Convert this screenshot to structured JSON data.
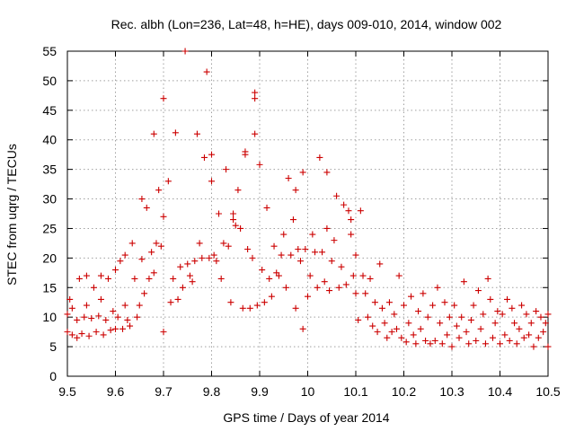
{
  "chart_data": {
    "type": "scatter",
    "title": "Rec. albh (Lon=236, Lat=48, h=HE), days 009-010, 2014, window 002",
    "xlabel": "GPS time / Days of year 2014",
    "ylabel": "STEC from uqrg / TECUs",
    "xlim": [
      9.5,
      10.5
    ],
    "ylim": [
      0,
      55
    ],
    "xticks": [
      9.5,
      9.6,
      9.7,
      9.8,
      9.9,
      10,
      10.1,
      10.2,
      10.3,
      10.4,
      10.5
    ],
    "xtick_labels": [
      "9.5",
      "9.6",
      "9.7",
      "9.8",
      "9.9",
      "10",
      "10.1",
      "10.2",
      "10.3",
      "10.4",
      "10.5"
    ],
    "yticks": [
      0,
      5,
      10,
      15,
      20,
      25,
      30,
      35,
      40,
      45,
      50,
      55
    ],
    "ytick_labels": [
      "0",
      "5",
      "10",
      "15",
      "20",
      "25",
      "30",
      "35",
      "40",
      "45",
      "50",
      "55"
    ],
    "grid": true,
    "legend": "none",
    "marker": "+",
    "color": "#cc0000",
    "series": [
      {
        "points": [
          [
            9.5,
            7.5
          ],
          [
            9.5,
            10.5
          ],
          [
            9.505,
            13.0
          ],
          [
            9.51,
            7.0
          ],
          [
            9.51,
            11.5
          ],
          [
            9.52,
            6.5
          ],
          [
            9.52,
            9.5
          ],
          [
            9.525,
            16.5
          ],
          [
            9.53,
            7.2
          ],
          [
            9.535,
            10.0
          ],
          [
            9.54,
            17.0
          ],
          [
            9.54,
            12.0
          ],
          [
            9.545,
            6.8
          ],
          [
            9.55,
            9.8
          ],
          [
            9.555,
            15.0
          ],
          [
            9.56,
            7.5
          ],
          [
            9.565,
            10.2
          ],
          [
            9.57,
            17.0
          ],
          [
            9.57,
            13.0
          ],
          [
            9.575,
            7.0
          ],
          [
            9.58,
            9.5
          ],
          [
            9.585,
            16.5
          ],
          [
            9.59,
            7.8
          ],
          [
            9.595,
            11.0
          ],
          [
            9.6,
            18.0
          ],
          [
            9.6,
            8.0
          ],
          [
            9.605,
            10.0
          ],
          [
            9.61,
            19.5
          ],
          [
            9.615,
            8.0
          ],
          [
            9.62,
            12.0
          ],
          [
            9.62,
            20.5
          ],
          [
            9.625,
            9.5
          ],
          [
            9.63,
            8.5
          ],
          [
            9.635,
            22.5
          ],
          [
            9.64,
            16.5
          ],
          [
            9.645,
            10.0
          ],
          [
            9.65,
            12.0
          ],
          [
            9.655,
            19.8
          ],
          [
            9.655,
            30.0
          ],
          [
            9.66,
            14.0
          ],
          [
            9.665,
            28.5
          ],
          [
            9.67,
            16.5
          ],
          [
            9.675,
            21.0
          ],
          [
            9.68,
            41.0
          ],
          [
            9.68,
            17.5
          ],
          [
            9.685,
            22.5
          ],
          [
            9.69,
            31.5
          ],
          [
            9.695,
            22.0
          ],
          [
            9.7,
            27.0
          ],
          [
            9.7,
            47.0
          ],
          [
            9.7,
            7.5
          ],
          [
            9.71,
            33.0
          ],
          [
            9.715,
            12.5
          ],
          [
            9.72,
            16.5
          ],
          [
            9.725,
            41.2
          ],
          [
            9.73,
            13.0
          ],
          [
            9.735,
            18.5
          ],
          [
            9.74,
            15.0
          ],
          [
            9.745,
            55.0
          ],
          [
            9.75,
            19.0
          ],
          [
            9.755,
            17.0
          ],
          [
            9.76,
            16.0
          ],
          [
            9.765,
            19.5
          ],
          [
            9.77,
            41.0
          ],
          [
            9.775,
            22.5
          ],
          [
            9.78,
            20.0
          ],
          [
            9.785,
            37.0
          ],
          [
            9.79,
            51.5
          ],
          [
            9.795,
            20.0
          ],
          [
            9.8,
            33.0
          ],
          [
            9.8,
            37.5
          ],
          [
            9.805,
            20.5
          ],
          [
            9.81,
            19.5
          ],
          [
            9.815,
            27.5
          ],
          [
            9.82,
            16.5
          ],
          [
            9.825,
            22.5
          ],
          [
            9.83,
            35.0
          ],
          [
            9.835,
            22.0
          ],
          [
            9.84,
            12.5
          ],
          [
            9.845,
            26.5
          ],
          [
            9.845,
            27.5
          ],
          [
            9.85,
            25.5
          ],
          [
            9.855,
            31.5
          ],
          [
            9.86,
            25.0
          ],
          [
            9.865,
            11.5
          ],
          [
            9.87,
            38.0
          ],
          [
            9.87,
            37.5
          ],
          [
            9.875,
            21.5
          ],
          [
            9.88,
            11.5
          ],
          [
            9.885,
            20.0
          ],
          [
            9.89,
            41.0
          ],
          [
            9.89,
            47.0
          ],
          [
            9.89,
            48.0
          ],
          [
            9.895,
            12.0
          ],
          [
            9.9,
            35.8
          ],
          [
            9.905,
            18.0
          ],
          [
            9.91,
            12.5
          ],
          [
            9.915,
            28.5
          ],
          [
            9.92,
            16.5
          ],
          [
            9.925,
            13.5
          ],
          [
            9.93,
            22.0
          ],
          [
            9.935,
            17.5
          ],
          [
            9.94,
            17.0
          ],
          [
            9.945,
            20.5
          ],
          [
            9.95,
            24.0
          ],
          [
            9.955,
            15.0
          ],
          [
            9.96,
            33.5
          ],
          [
            9.965,
            20.5
          ],
          [
            9.97,
            26.5
          ],
          [
            9.975,
            31.5
          ],
          [
            9.975,
            11.5
          ],
          [
            9.98,
            21.5
          ],
          [
            9.985,
            19.5
          ],
          [
            9.99,
            8.0
          ],
          [
            9.99,
            34.5
          ],
          [
            9.995,
            21.5
          ],
          [
            10.0,
            13.5
          ],
          [
            10.005,
            17.0
          ],
          [
            10.01,
            24.0
          ],
          [
            10.015,
            21.0
          ],
          [
            10.02,
            15.0
          ],
          [
            10.025,
            37.0
          ],
          [
            10.03,
            21.0
          ],
          [
            10.035,
            16.0
          ],
          [
            10.04,
            34.5
          ],
          [
            10.04,
            25.0
          ],
          [
            10.045,
            14.5
          ],
          [
            10.05,
            19.5
          ],
          [
            10.055,
            23.0
          ],
          [
            10.06,
            30.5
          ],
          [
            10.065,
            15.0
          ],
          [
            10.07,
            18.5
          ],
          [
            10.075,
            29.0
          ],
          [
            10.08,
            15.5
          ],
          [
            10.085,
            28.0
          ],
          [
            10.09,
            26.5
          ],
          [
            10.09,
            24.0
          ],
          [
            10.095,
            17.0
          ],
          [
            10.1,
            20.5
          ],
          [
            10.1,
            14.0
          ],
          [
            10.105,
            9.5
          ],
          [
            10.11,
            28.0
          ],
          [
            10.115,
            17.0
          ],
          [
            10.12,
            14.0
          ],
          [
            10.125,
            10.0
          ],
          [
            10.13,
            16.5
          ],
          [
            10.135,
            8.5
          ],
          [
            10.14,
            12.5
          ],
          [
            10.145,
            7.5
          ],
          [
            10.15,
            19.0
          ],
          [
            10.155,
            11.5
          ],
          [
            10.16,
            9.0
          ],
          [
            10.165,
            6.5
          ],
          [
            10.17,
            12.5
          ],
          [
            10.175,
            7.5
          ],
          [
            10.18,
            10.5
          ],
          [
            10.185,
            8.0
          ],
          [
            10.19,
            17.0
          ],
          [
            10.195,
            6.5
          ],
          [
            10.2,
            12.0
          ],
          [
            10.205,
            5.8
          ],
          [
            10.21,
            9.0
          ],
          [
            10.215,
            13.5
          ],
          [
            10.22,
            7.0
          ],
          [
            10.225,
            5.5
          ],
          [
            10.23,
            11.0
          ],
          [
            10.235,
            8.0
          ],
          [
            10.24,
            14.0
          ],
          [
            10.245,
            6.0
          ],
          [
            10.25,
            10.0
          ],
          [
            10.255,
            5.5
          ],
          [
            10.26,
            12.0
          ],
          [
            10.265,
            6.0
          ],
          [
            10.27,
            15.0
          ],
          [
            10.275,
            9.0
          ],
          [
            10.28,
            5.5
          ],
          [
            10.285,
            12.5
          ],
          [
            10.29,
            7.0
          ],
          [
            10.295,
            10.0
          ],
          [
            10.3,
            5.0
          ],
          [
            10.305,
            12.0
          ],
          [
            10.31,
            8.5
          ],
          [
            10.315,
            6.5
          ],
          [
            10.32,
            10.0
          ],
          [
            10.325,
            16.0
          ],
          [
            10.33,
            7.5
          ],
          [
            10.335,
            5.5
          ],
          [
            10.34,
            9.5
          ],
          [
            10.345,
            12.0
          ],
          [
            10.35,
            6.0
          ],
          [
            10.355,
            14.5
          ],
          [
            10.36,
            8.0
          ],
          [
            10.365,
            10.5
          ],
          [
            10.37,
            5.5
          ],
          [
            10.375,
            16.5
          ],
          [
            10.38,
            13.0
          ],
          [
            10.385,
            6.5
          ],
          [
            10.39,
            9.0
          ],
          [
            10.395,
            11.0
          ],
          [
            10.4,
            5.5
          ],
          [
            10.405,
            10.5
          ],
          [
            10.41,
            7.0
          ],
          [
            10.415,
            13.0
          ],
          [
            10.42,
            6.0
          ],
          [
            10.425,
            11.5
          ],
          [
            10.43,
            9.0
          ],
          [
            10.435,
            5.5
          ],
          [
            10.44,
            8.0
          ],
          [
            10.445,
            12.0
          ],
          [
            10.45,
            6.5
          ],
          [
            10.455,
            10.5
          ],
          [
            10.46,
            7.0
          ],
          [
            10.465,
            9.0
          ],
          [
            10.47,
            5.0
          ],
          [
            10.475,
            11.0
          ],
          [
            10.48,
            6.5
          ],
          [
            10.485,
            10.0
          ],
          [
            10.49,
            7.5
          ],
          [
            10.495,
            9.0
          ],
          [
            10.5,
            5.0
          ],
          [
            10.5,
            10.5
          ]
        ]
      }
    ]
  }
}
